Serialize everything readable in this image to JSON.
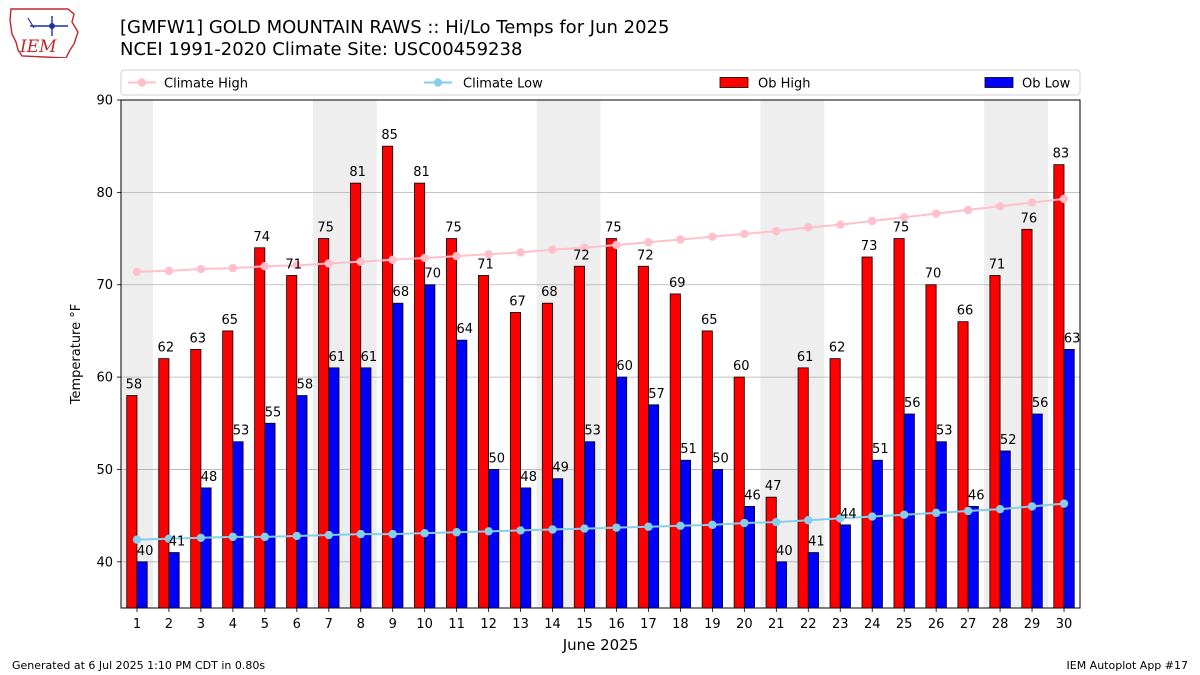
{
  "header": {
    "logo_text": "IEM",
    "title_line1": "[GMFW1] GOLD MOUNTAIN RAWS :: Hi/Lo Temps for Jun 2025",
    "title_line2": "NCEI 1991-2020 Climate Site: USC00459238"
  },
  "footer": {
    "generated": "Generated at 6 Jul 2025 1:10 PM CDT in 0.80s",
    "app": "IEM Autoplot App #17"
  },
  "chart_data": {
    "type": "bar",
    "categories": [
      "1",
      "2",
      "3",
      "4",
      "5",
      "6",
      "7",
      "8",
      "9",
      "10",
      "11",
      "12",
      "13",
      "14",
      "15",
      "16",
      "17",
      "18",
      "19",
      "20",
      "21",
      "22",
      "23",
      "24",
      "25",
      "26",
      "27",
      "28",
      "29",
      "30"
    ],
    "xlabel": "June 2025",
    "ylabel": "Temperature °F",
    "ylim": [
      35,
      90
    ],
    "yticks": [
      40,
      50,
      60,
      70,
      80,
      90
    ],
    "grid": "horizontal",
    "legend_position": "top",
    "weekend_shading_ranges": [
      [
        1,
        1
      ],
      [
        7,
        8
      ],
      [
        14,
        15
      ],
      [
        21,
        22
      ],
      [
        28,
        29
      ]
    ],
    "series": [
      {
        "name": "Ob High",
        "kind": "bar",
        "color": "#ff0000",
        "values": [
          58,
          62,
          63,
          65,
          74,
          71,
          75,
          81,
          85,
          81,
          75,
          71,
          67,
          68,
          72,
          75,
          72,
          69,
          65,
          60,
          47,
          61,
          62,
          73,
          75,
          70,
          66,
          71,
          76,
          83
        ]
      },
      {
        "name": "Ob Low",
        "kind": "bar",
        "color": "#0000ff",
        "values": [
          40,
          41,
          48,
          53,
          55,
          58,
          61,
          61,
          68,
          70,
          64,
          50,
          48,
          49,
          53,
          60,
          57,
          51,
          50,
          46,
          40,
          41,
          44,
          51,
          56,
          53,
          46,
          52,
          56,
          63
        ]
      },
      {
        "name": "Climate High",
        "kind": "line",
        "color": "#ffc0cb",
        "values": [
          71.4,
          71.5,
          71.7,
          71.8,
          72.0,
          72.1,
          72.3,
          72.5,
          72.7,
          72.9,
          73.1,
          73.3,
          73.5,
          73.8,
          74.0,
          74.3,
          74.6,
          74.9,
          75.2,
          75.5,
          75.8,
          76.2,
          76.5,
          76.9,
          77.3,
          77.7,
          78.1,
          78.5,
          78.9,
          79.3
        ]
      },
      {
        "name": "Climate Low",
        "kind": "line",
        "color": "#87ceeb",
        "values": [
          42.4,
          42.5,
          42.6,
          42.7,
          42.7,
          42.8,
          42.9,
          43.0,
          43.0,
          43.1,
          43.2,
          43.3,
          43.4,
          43.5,
          43.6,
          43.7,
          43.8,
          43.9,
          44.0,
          44.2,
          44.3,
          44.5,
          44.7,
          44.9,
          45.1,
          45.3,
          45.5,
          45.7,
          46.0,
          46.3
        ]
      }
    ]
  }
}
